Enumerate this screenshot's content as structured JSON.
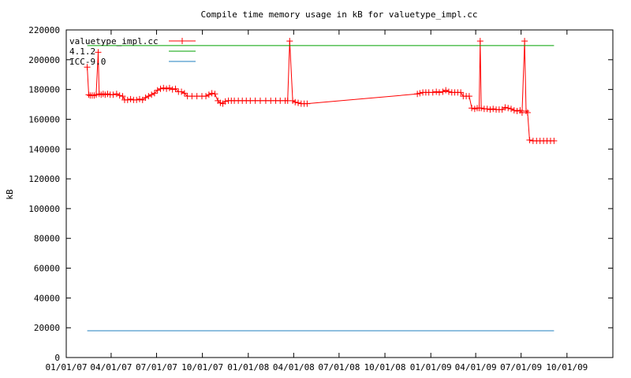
{
  "chart_data": {
    "type": "line",
    "title": "Compile time memory usage in kB for valuetype_impl.cc",
    "ylabel": "kB",
    "xlabel": "",
    "ylim": [
      0,
      220000
    ],
    "xlim": [
      "2007-01-01",
      "2010-01-01"
    ],
    "grid": false,
    "legend_position": "top-left",
    "y_ticks": [
      0,
      20000,
      40000,
      60000,
      80000,
      100000,
      120000,
      140000,
      160000,
      180000,
      200000,
      220000
    ],
    "x_ticks": [
      {
        "date": "2007-01-01",
        "label": "01/01/07"
      },
      {
        "date": "2007-04-01",
        "label": "04/01/07"
      },
      {
        "date": "2007-07-01",
        "label": "07/01/07"
      },
      {
        "date": "2007-10-01",
        "label": "10/01/07"
      },
      {
        "date": "2008-01-01",
        "label": "01/01/08"
      },
      {
        "date": "2008-04-01",
        "label": "04/01/08"
      },
      {
        "date": "2008-07-01",
        "label": "07/01/08"
      },
      {
        "date": "2008-10-01",
        "label": "10/01/08"
      },
      {
        "date": "2009-01-01",
        "label": "01/01/09"
      },
      {
        "date": "2009-04-01",
        "label": "04/01/09"
      },
      {
        "date": "2009-07-01",
        "label": "07/01/09"
      },
      {
        "date": "2009-10-01",
        "label": "10/01/09"
      }
    ],
    "series": [
      {
        "name": "valuetype_impl.cc",
        "color": "#ff0000",
        "marker": "plus",
        "points": [
          [
            "2007-02-12",
            195000
          ],
          [
            "2007-02-15",
            176500
          ],
          [
            "2007-02-18",
            176000
          ],
          [
            "2007-02-22",
            176000
          ],
          [
            "2007-02-26",
            176000
          ],
          [
            "2007-03-02",
            176500
          ],
          [
            "2007-03-06",
            205000
          ],
          [
            "2007-03-08",
            177000
          ],
          [
            "2007-03-12",
            176500
          ],
          [
            "2007-03-16",
            177000
          ],
          [
            "2007-03-20",
            176500
          ],
          [
            "2007-03-25",
            177000
          ],
          [
            "2007-03-30",
            176500
          ],
          [
            "2007-04-05",
            176500
          ],
          [
            "2007-04-12",
            177000
          ],
          [
            "2007-04-18",
            176000
          ],
          [
            "2007-04-24",
            175500
          ],
          [
            "2007-04-28",
            173000
          ],
          [
            "2007-05-04",
            173000
          ],
          [
            "2007-05-10",
            173500
          ],
          [
            "2007-05-16",
            173000
          ],
          [
            "2007-05-22",
            173000
          ],
          [
            "2007-05-28",
            173500
          ],
          [
            "2007-06-03",
            173000
          ],
          [
            "2007-06-09",
            174500
          ],
          [
            "2007-06-15",
            175500
          ],
          [
            "2007-06-21",
            176500
          ],
          [
            "2007-06-27",
            177500
          ],
          [
            "2007-07-03",
            179500
          ],
          [
            "2007-07-09",
            180500
          ],
          [
            "2007-07-15",
            181000
          ],
          [
            "2007-07-21",
            180500
          ],
          [
            "2007-07-27",
            181000
          ],
          [
            "2007-08-02",
            180000
          ],
          [
            "2007-08-08",
            180500
          ],
          [
            "2007-08-14",
            178500
          ],
          [
            "2007-08-20",
            178500
          ],
          [
            "2007-08-26",
            177500
          ],
          [
            "2007-09-01",
            175500
          ],
          [
            "2007-09-10",
            175500
          ],
          [
            "2007-09-20",
            175500
          ],
          [
            "2007-09-30",
            175500
          ],
          [
            "2007-10-08",
            175500
          ],
          [
            "2007-10-14",
            176500
          ],
          [
            "2007-10-20",
            177500
          ],
          [
            "2007-10-26",
            177000
          ],
          [
            "2007-11-01",
            172500
          ],
          [
            "2007-11-06",
            171000
          ],
          [
            "2007-11-11",
            170500
          ],
          [
            "2007-11-16",
            172000
          ],
          [
            "2007-11-22",
            172500
          ],
          [
            "2007-11-28",
            172500
          ],
          [
            "2007-12-04",
            172500
          ],
          [
            "2007-12-12",
            172500
          ],
          [
            "2007-12-20",
            172500
          ],
          [
            "2007-12-28",
            172500
          ],
          [
            "2008-01-05",
            172500
          ],
          [
            "2008-01-15",
            172500
          ],
          [
            "2008-01-25",
            172500
          ],
          [
            "2008-02-05",
            172500
          ],
          [
            "2008-02-15",
            172500
          ],
          [
            "2008-02-25",
            172500
          ],
          [
            "2008-03-05",
            172500
          ],
          [
            "2008-03-15",
            172500
          ],
          [
            "2008-03-20",
            172500
          ],
          [
            "2008-03-24",
            212500
          ],
          [
            "2008-03-30",
            172500
          ],
          [
            "2008-04-04",
            171500
          ],
          [
            "2008-04-10",
            171000
          ],
          [
            "2008-04-16",
            170500
          ],
          [
            "2008-04-22",
            170500
          ],
          [
            "2008-04-28",
            170500
          ],
          [
            "2008-12-05",
            177000
          ],
          [
            "2008-12-10",
            177500
          ],
          [
            "2008-12-16",
            178000
          ],
          [
            "2008-12-22",
            178000
          ],
          [
            "2008-12-28",
            178000
          ],
          [
            "2009-01-05",
            178000
          ],
          [
            "2009-01-12",
            178500
          ],
          [
            "2009-01-18",
            178000
          ],
          [
            "2009-01-25",
            178500
          ],
          [
            "2009-01-31",
            179500
          ],
          [
            "2009-02-06",
            178500
          ],
          [
            "2009-02-12",
            178000
          ],
          [
            "2009-02-18",
            178000
          ],
          [
            "2009-02-24",
            178000
          ],
          [
            "2009-03-02",
            178000
          ],
          [
            "2009-03-07",
            175500
          ],
          [
            "2009-03-13",
            175500
          ],
          [
            "2009-03-19",
            175500
          ],
          [
            "2009-03-24",
            167500
          ],
          [
            "2009-03-30",
            167000
          ],
          [
            "2009-04-04",
            167500
          ],
          [
            "2009-04-08",
            167500
          ],
          [
            "2009-04-10",
            212500
          ],
          [
            "2009-04-12",
            167500
          ],
          [
            "2009-04-18",
            167000
          ],
          [
            "2009-04-24",
            167000
          ],
          [
            "2009-04-30",
            166500
          ],
          [
            "2009-05-06",
            167000
          ],
          [
            "2009-05-12",
            166500
          ],
          [
            "2009-05-18",
            166500
          ],
          [
            "2009-05-24",
            166500
          ],
          [
            "2009-05-30",
            168000
          ],
          [
            "2009-06-05",
            167500
          ],
          [
            "2009-06-11",
            167000
          ],
          [
            "2009-06-17",
            166000
          ],
          [
            "2009-06-23",
            165500
          ],
          [
            "2009-06-29",
            166000
          ],
          [
            "2009-07-03",
            164500
          ],
          [
            "2009-07-08",
            212500
          ],
          [
            "2009-07-11",
            165500
          ],
          [
            "2009-07-14",
            164500
          ],
          [
            "2009-07-18",
            146000
          ],
          [
            "2009-07-25",
            145500
          ],
          [
            "2009-08-01",
            145500
          ],
          [
            "2009-08-08",
            145500
          ],
          [
            "2009-08-15",
            145500
          ],
          [
            "2009-08-22",
            145500
          ],
          [
            "2009-08-29",
            145500
          ],
          [
            "2009-09-05",
            145500
          ]
        ]
      },
      {
        "name": "4.1.2",
        "color": "#00a000",
        "marker": "none",
        "points": [
          [
            "2007-02-12",
            209500
          ],
          [
            "2009-09-05",
            209500
          ]
        ]
      },
      {
        "name": "ICC-9.0",
        "color": "#1f7fbf",
        "marker": "none",
        "points": [
          [
            "2007-02-12",
            18000
          ],
          [
            "2009-09-05",
            18000
          ]
        ]
      }
    ]
  }
}
